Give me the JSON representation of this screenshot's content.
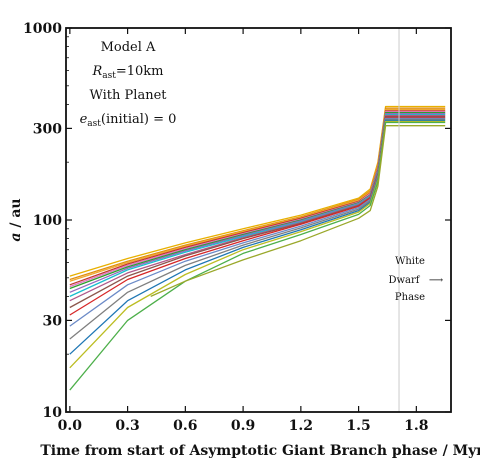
{
  "chart_data": {
    "type": "line",
    "xlabel": "Time from start of Asymptotic Giant Branch phase / Myr",
    "ylabel_italic": "a",
    "ylabel_rest": " / au",
    "xlim": [
      -0.02,
      1.98
    ],
    "ylim": [
      10,
      1000
    ],
    "yscale": "log",
    "x_ticks": [
      0.0,
      0.3,
      0.6,
      0.9,
      1.2,
      1.5,
      1.8
    ],
    "x_tick_labels": [
      "0.0",
      "0.3",
      "0.6",
      "0.9",
      "1.2",
      "1.5",
      "1.8"
    ],
    "y_ticks": [
      10,
      30,
      100,
      300,
      1000
    ],
    "y_tick_labels": [
      "10",
      "30",
      "100",
      "300",
      "1000"
    ],
    "grid": false,
    "white_dwarf_marker_x": 1.71,
    "annotations": {
      "model": "Model A",
      "radius_symbol": "R",
      "radius_sub": "ast",
      "radius_value": "=10km",
      "planet": "With Planet",
      "ecc_symbol": "e",
      "ecc_sub": "ast",
      "ecc_value": "(initial) = 0",
      "wd_line1": "White",
      "wd_line2": "Dwarf",
      "wd_line3": "Phase",
      "wd_arrow": "⟶"
    },
    "series": [
      {
        "color": "#e8b000",
        "x": [
          0,
          0.3,
          0.6,
          0.9,
          1.2,
          1.5,
          1.56,
          1.6,
          1.64,
          1.95
        ],
        "y": [
          51,
          63,
          76,
          90,
          106,
          130,
          145,
          200,
          390,
          390
        ]
      },
      {
        "color": "#e08f10",
        "x": [
          0,
          0.3,
          0.6,
          0.9,
          1.2,
          1.5,
          1.56,
          1.6,
          1.64,
          1.95
        ],
        "y": [
          49,
          61,
          74,
          88,
          104,
          128,
          142,
          195,
          382,
          382
        ]
      },
      {
        "color": "#f0a830",
        "x": [
          0,
          0.3,
          0.6,
          0.9,
          1.2,
          1.5,
          1.56,
          1.6,
          1.64,
          1.95
        ],
        "y": [
          48,
          60,
          73,
          87,
          103,
          127,
          140,
          192,
          376,
          376
        ]
      },
      {
        "color": "#c0392b",
        "x": [
          0,
          0.3,
          0.6,
          0.9,
          1.2,
          1.5,
          1.56,
          1.6,
          1.64,
          1.95
        ],
        "y": [
          46,
          59,
          72,
          86,
          102,
          125,
          138,
          188,
          370,
          370
        ]
      },
      {
        "color": "#e377c2",
        "x": [
          0,
          0.3,
          0.6,
          0.9,
          1.2,
          1.5,
          1.56,
          1.6,
          1.64,
          1.95
        ],
        "y": [
          45,
          58,
          71,
          85,
          101,
          124,
          137,
          185,
          366,
          366
        ]
      },
      {
        "color": "#2ca02c",
        "x": [
          0,
          0.3,
          0.6,
          0.9,
          1.2,
          1.5,
          1.56,
          1.6,
          1.64,
          1.95
        ],
        "y": [
          44,
          57,
          70,
          84,
          100,
          123,
          135,
          182,
          362,
          362
        ]
      },
      {
        "color": "#9467bd",
        "x": [
          0,
          0.3,
          0.6,
          0.9,
          1.2,
          1.5,
          1.56,
          1.6,
          1.64,
          1.95
        ],
        "y": [
          42,
          56,
          69,
          83,
          99,
          122,
          134,
          180,
          358,
          358
        ]
      },
      {
        "color": "#17becf",
        "x": [
          0,
          0.3,
          0.6,
          0.9,
          1.2,
          1.5,
          1.56,
          1.6,
          1.64,
          1.95
        ],
        "y": [
          40,
          55,
          68,
          82,
          98,
          121,
          133,
          178,
          354,
          354
        ]
      },
      {
        "color": "#b05a8a",
        "x": [
          0,
          0.3,
          0.6,
          0.9,
          1.2,
          1.5,
          1.56,
          1.6,
          1.64,
          1.95
        ],
        "y": [
          38,
          53,
          66,
          81,
          97,
          120,
          132,
          176,
          350,
          350
        ]
      },
      {
        "color": "#8c564b",
        "x": [
          0,
          0.3,
          0.6,
          0.9,
          1.2,
          1.5,
          1.56,
          1.6,
          1.64,
          1.95
        ],
        "y": [
          35,
          51,
          65,
          80,
          96,
          119,
          131,
          174,
          346,
          346
        ]
      },
      {
        "color": "#d62728",
        "x": [
          0,
          0.3,
          0.6,
          0.9,
          1.2,
          1.5,
          1.56,
          1.6,
          1.64,
          1.95
        ],
        "y": [
          32,
          49,
          63,
          78,
          95,
          118,
          130,
          172,
          342,
          342
        ]
      },
      {
        "color": "#6b8ac7",
        "x": [
          0,
          0.3,
          0.6,
          0.9,
          1.2,
          1.5,
          1.56,
          1.6,
          1.64,
          1.95
        ],
        "y": [
          28,
          46,
          61,
          76,
          93,
          116,
          128,
          170,
          338,
          338
        ]
      },
      {
        "color": "#7f7f7f",
        "x": [
          0,
          0.3,
          0.6,
          0.9,
          1.2,
          1.5,
          1.56,
          1.6,
          1.64,
          1.95
        ],
        "y": [
          24,
          42,
          58,
          74,
          91,
          114,
          126,
          168,
          334,
          334
        ]
      },
      {
        "color": "#1f77b4",
        "x": [
          0,
          0.3,
          0.6,
          0.9,
          1.2,
          1.5,
          1.56,
          1.6,
          1.64,
          1.95
        ],
        "y": [
          20,
          38,
          55,
          72,
          89,
          112,
          124,
          165,
          330,
          330
        ]
      },
      {
        "color": "#bcbd22",
        "x": [
          0,
          0.3,
          0.6,
          0.9,
          1.2,
          1.5,
          1.56,
          1.6,
          1.64,
          1.95
        ],
        "y": [
          17,
          35,
          52,
          70,
          87,
          110,
          122,
          162,
          326,
          326
        ]
      },
      {
        "color": "#4daf4a",
        "x": [
          0,
          0.3,
          0.6,
          0.9,
          1.2,
          1.5,
          1.56,
          1.6,
          1.64,
          1.95
        ],
        "y": [
          13,
          30,
          48,
          67,
          84,
          107,
          119,
          158,
          322,
          322
        ]
      },
      {
        "color": "#9aa82a",
        "x": [
          0.42,
          0.6,
          0.9,
          1.2,
          1.5,
          1.56,
          1.6,
          1.64,
          1.95
        ],
        "y": [
          40,
          48,
          62,
          78,
          102,
          112,
          150,
          310,
          310
        ]
      }
    ]
  }
}
